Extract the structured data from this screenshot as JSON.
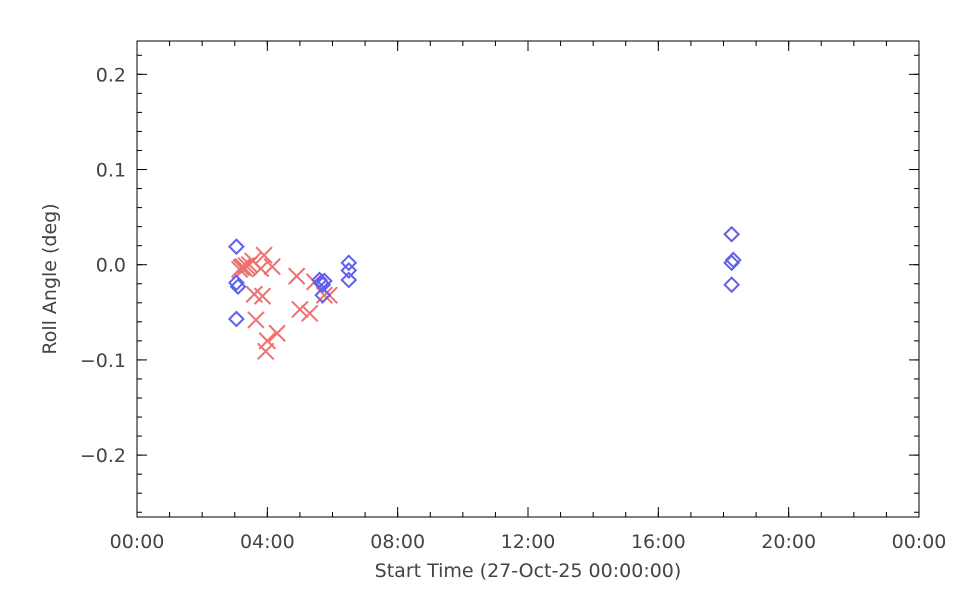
{
  "chart_data": {
    "type": "scatter",
    "title": "",
    "xlabel": "Start Time (27-Oct-25 00:00:00)",
    "ylabel": "Roll Angle (deg)",
    "x_unit": "hours",
    "xlim": [
      0,
      24
    ],
    "ylim": [
      -0.265,
      0.235
    ],
    "x_ticks": [
      {
        "value": 0,
        "label": "00:00"
      },
      {
        "value": 4,
        "label": "04:00"
      },
      {
        "value": 8,
        "label": "08:00"
      },
      {
        "value": 12,
        "label": "12:00"
      },
      {
        "value": 16,
        "label": "16:00"
      },
      {
        "value": 20,
        "label": "20:00"
      },
      {
        "value": 24,
        "label": "00:00"
      }
    ],
    "y_ticks": [
      {
        "value": -0.2,
        "label": "−0.2"
      },
      {
        "value": -0.1,
        "label": "−0.1"
      },
      {
        "value": 0.0,
        "label": "0.0"
      },
      {
        "value": 0.1,
        "label": "0.1"
      },
      {
        "value": 0.2,
        "label": "0.2"
      }
    ],
    "x_minor_step": 1,
    "y_minor_step": 0.02,
    "grid": false,
    "series": [
      {
        "marker": "x",
        "color": "#f07070",
        "points": [
          [
            3.15,
            -0.005
          ],
          [
            3.2,
            -0.003
          ],
          [
            3.25,
            -0.002
          ],
          [
            3.3,
            -0.004
          ],
          [
            3.35,
            -0.001
          ],
          [
            3.45,
            0.0
          ],
          [
            3.55,
            0.004
          ],
          [
            3.6,
            -0.031
          ],
          [
            3.65,
            -0.058
          ],
          [
            3.8,
            -0.004
          ],
          [
            3.85,
            -0.033
          ],
          [
            3.9,
            0.01
          ],
          [
            3.95,
            -0.091
          ],
          [
            4.15,
            -0.002
          ],
          [
            4.3,
            -0.072
          ],
          [
            4.0,
            -0.08
          ],
          [
            4.9,
            -0.012
          ],
          [
            5.0,
            -0.047
          ],
          [
            5.3,
            -0.051
          ],
          [
            5.45,
            -0.018
          ],
          [
            5.75,
            -0.032
          ],
          [
            5.9,
            -0.032
          ]
        ]
      },
      {
        "marker": "diamond",
        "color": "#6060ee",
        "points": [
          [
            3.05,
            0.019
          ],
          [
            3.05,
            -0.019
          ],
          [
            3.1,
            -0.023
          ],
          [
            3.05,
            -0.057
          ],
          [
            5.6,
            -0.016
          ],
          [
            5.65,
            -0.019
          ],
          [
            5.7,
            -0.021
          ],
          [
            5.7,
            -0.032
          ],
          [
            5.75,
            -0.017
          ],
          [
            6.5,
            0.002
          ],
          [
            6.5,
            -0.006
          ],
          [
            6.5,
            -0.016
          ],
          [
            18.25,
            0.032
          ],
          [
            18.3,
            0.005
          ],
          [
            18.25,
            0.002
          ],
          [
            18.25,
            -0.021
          ]
        ]
      }
    ]
  }
}
